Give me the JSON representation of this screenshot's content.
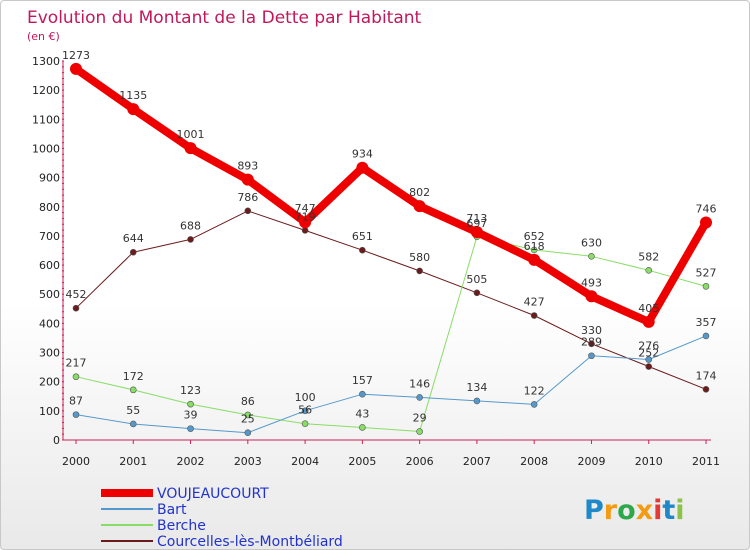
{
  "chart_data": {
    "type": "line",
    "title": "Evolution du Montant de la Dette par Habitant",
    "subtitle": "(en €)",
    "categories": [
      "2000",
      "2001",
      "2002",
      "2003",
      "2004",
      "2005",
      "2006",
      "2007",
      "2008",
      "2009",
      "2010",
      "2011"
    ],
    "ylim": [
      0,
      1300
    ],
    "yticks": [
      0,
      100,
      200,
      300,
      400,
      500,
      600,
      700,
      800,
      900,
      1000,
      1100,
      1200,
      1300
    ],
    "series": [
      {
        "name": "Courcelles-lès-Montbéliard",
        "color": "#6b1b1b",
        "width": 1,
        "values": [
          452,
          644,
          688,
          786,
          719,
          651,
          580,
          505,
          427,
          330,
          252,
          174
        ]
      },
      {
        "name": "Berche",
        "color": "#88dd66",
        "width": 1,
        "values": [
          217,
          172,
          123,
          86,
          56,
          43,
          29,
          697,
          652,
          630,
          582,
          527
        ]
      },
      {
        "name": "Bart",
        "color": "#5599cc",
        "width": 1,
        "values": [
          87,
          55,
          39,
          25,
          100,
          157,
          146,
          134,
          122,
          289,
          276,
          357
        ]
      },
      {
        "name": "VOUJEAUCOURT",
        "color": "#ee0000",
        "width": 8,
        "values": [
          1273,
          1135,
          1001,
          893,
          747,
          934,
          802,
          713,
          618,
          493,
          405,
          746
        ]
      }
    ],
    "legend_order": [
      "VOUJEAUCOURT",
      "Bart",
      "Berche",
      "Courcelles-lès-Montbéliard"
    ],
    "legend_position": "bottom-left"
  },
  "logo": {
    "letters": [
      "P",
      "r",
      "o",
      "x",
      "i",
      "t",
      "i"
    ],
    "colors": [
      "#1e88c8",
      "#f39c12",
      "#2ea84a",
      "#f39c12",
      "#e53935",
      "#1e88c8",
      "#8bc34a"
    ]
  }
}
